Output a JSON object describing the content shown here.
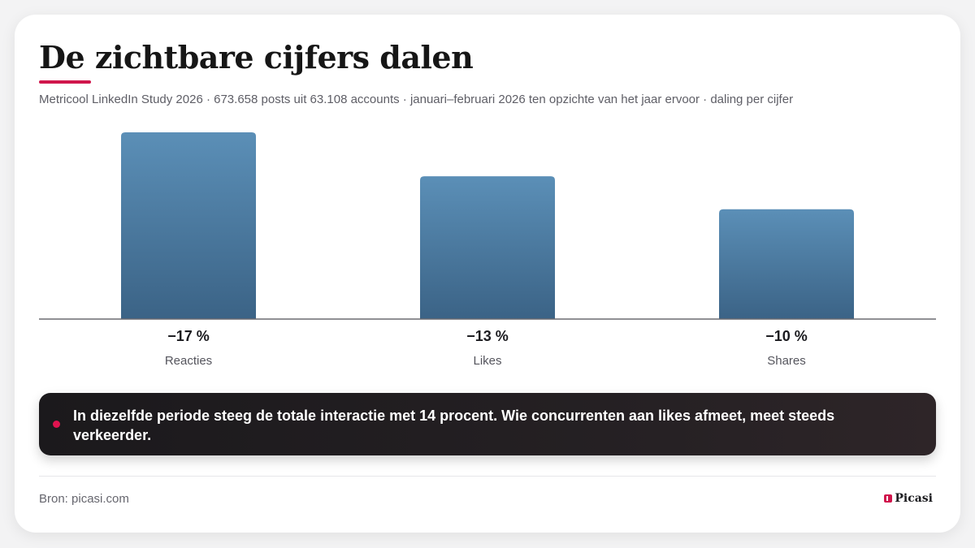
{
  "header": {
    "title": "De zichtbare cijfers dalen",
    "subtitle": "Metricool LinkedIn Study 2026 · 673.658 posts uit 63.108 accounts · januari–februari 2026 ten opzichte van het jaar ervoor · daling per cijfer"
  },
  "chart_data": {
    "type": "bar",
    "categories": [
      "Reacties",
      "Likes",
      "Shares"
    ],
    "values": [
      -17,
      -13,
      -10
    ],
    "value_labels": [
      "−17 %",
      "−13 %",
      "−10 %"
    ],
    "unit": "%",
    "title": "",
    "xlabel": "",
    "ylabel": "",
    "ylim": [
      0,
      17
    ],
    "grid": false,
    "legend": "none",
    "bar_color": "#4f7fa6"
  },
  "callout": {
    "text": "In diezelfde periode steeg de totale interactie met 14 procent. Wie concurrenten aan likes afmeet, meet steeds verkeerder."
  },
  "footer": {
    "source": "Bron: picasi.com",
    "brand": "Picasi"
  },
  "colors": {
    "accent": "#d0164c",
    "callout_bg": "#1b191c"
  }
}
